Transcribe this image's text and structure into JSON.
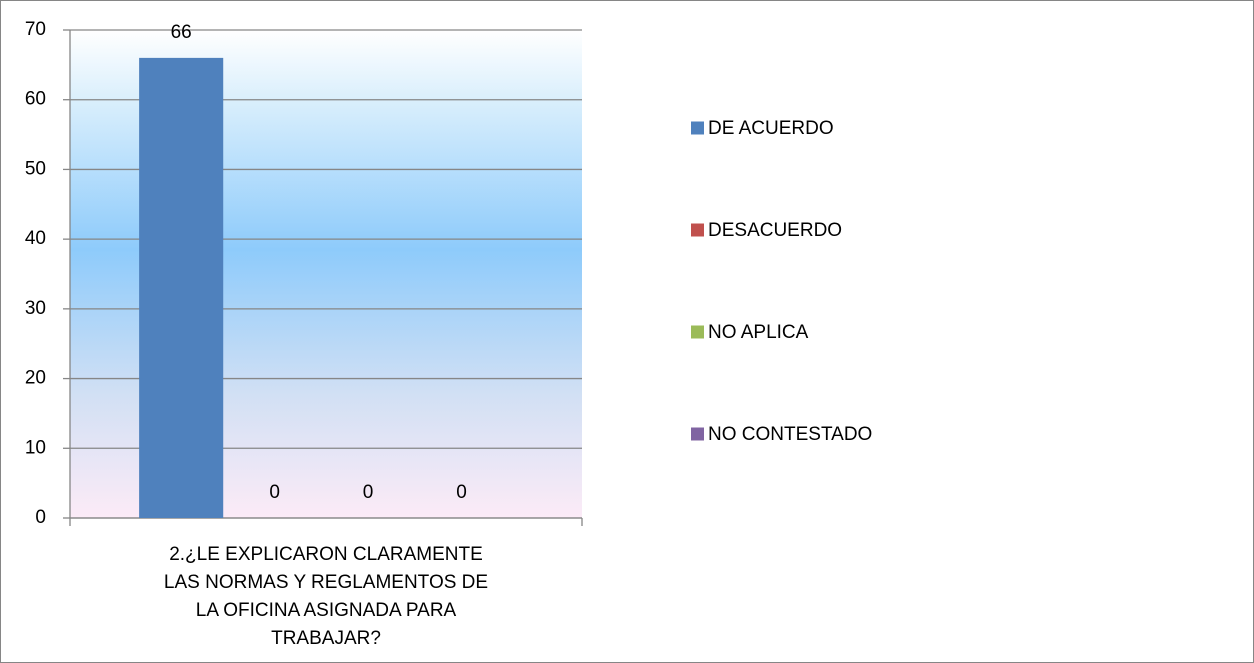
{
  "chart_data": {
    "type": "bar",
    "categories": [
      "2.¿LE EXPLICARON CLARAMENTE LAS NORMAS Y REGLAMENTOS DE LA OFICINA ASIGNADA PARA TRABAJAR?"
    ],
    "series": [
      {
        "name": "DE ACUERDO",
        "color": "#4f81bd",
        "values": [
          66
        ]
      },
      {
        "name": "DESACUERDO",
        "color": "#c0504d",
        "values": [
          0
        ]
      },
      {
        "name": "NO APLICA",
        "color": "#9bbb59",
        "values": [
          0
        ]
      },
      {
        "name": "NO CONTESTADO",
        "color": "#8064a2",
        "values": [
          0
        ]
      }
    ],
    "ylim": [
      0,
      70
    ],
    "yticks": [
      0,
      10,
      20,
      30,
      40,
      50,
      60,
      70
    ],
    "grid": true,
    "legend": "right",
    "data_labels": true
  }
}
